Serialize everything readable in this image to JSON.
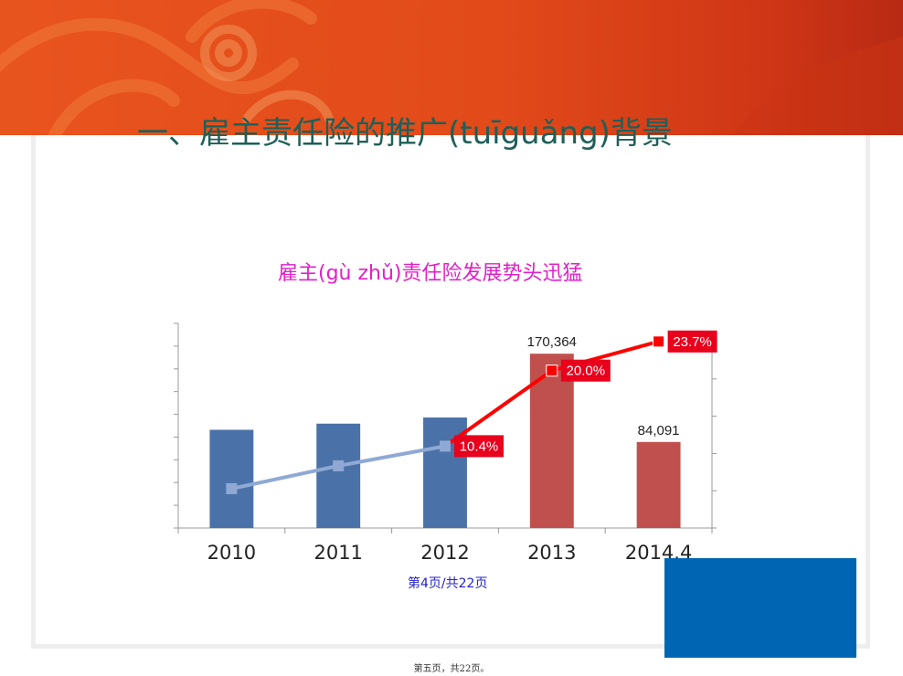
{
  "slide": {
    "title": "一、雇主责任险的推广(tuīguǎng)背景",
    "page_indicator": "第4页/共22页",
    "footer": "第五页，共22页。"
  },
  "colors": {
    "banner": "#e24a1a",
    "title": "#1f5f58",
    "chart_title": "#e020c8",
    "bar_blue": "#4a72a8",
    "bar_red": "#c0504d",
    "line_light": "#8fa9d4",
    "line_red": "#ff0000",
    "label_box": "#e8001c",
    "corner_box": "#0066b3"
  },
  "chart_data": {
    "type": "bar",
    "title": "雇主(gù zhǔ)责任险发展势头迅猛",
    "categories": [
      "2010",
      "2011",
      "2012",
      "2013",
      "2014.4"
    ],
    "series": [
      {
        "type": "bar",
        "values": [
          96000,
          102000,
          108000,
          170364,
          84091
        ],
        "colors": [
          "#4a72a8",
          "#4a72a8",
          "#4a72a8",
          "#c0504d",
          "#c0504d"
        ],
        "data_labels": [
          null,
          null,
          null,
          "170,364",
          "84,091"
        ]
      },
      {
        "type": "line",
        "axis": "secondary",
        "values": [
          0.05,
          0.079,
          0.104,
          0.2,
          0.237
        ],
        "data_labels": [
          null,
          null,
          "10.4%",
          "20.0%",
          "23.7%"
        ]
      }
    ],
    "ylim": [
      0,
      200000
    ],
    "y2lim": [
      0,
      0.26
    ],
    "grid": false,
    "legend": "none"
  }
}
